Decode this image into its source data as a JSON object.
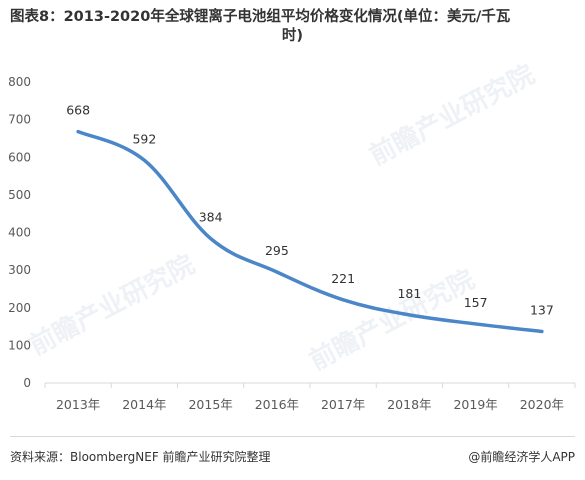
{
  "title_line1": "图表8：2013-2020年全球锂离子电池组平均价格变化情况(单位：美元/千瓦",
  "title_line2": "时)",
  "watermark_text": "前瞻产业研究院",
  "footer": {
    "source": "资料来源：BloombergNEF 前瞻产业研究院整理",
    "credit": "@前瞻经济学人APP"
  },
  "colors": {
    "line": "#4a86c8",
    "grid": "#d9d9d9",
    "text": "#595959"
  },
  "chart_data": {
    "type": "line",
    "categories": [
      "2013年",
      "2014年",
      "2015年",
      "2016年",
      "2017年",
      "2018年",
      "2019年",
      "2020年"
    ],
    "values": [
      668,
      592,
      384,
      295,
      221,
      181,
      157,
      137
    ],
    "ylim": [
      0,
      800
    ],
    "yticks": [
      0,
      100,
      200,
      300,
      400,
      500,
      600,
      700,
      800
    ],
    "grid": false,
    "data_labels": true
  }
}
